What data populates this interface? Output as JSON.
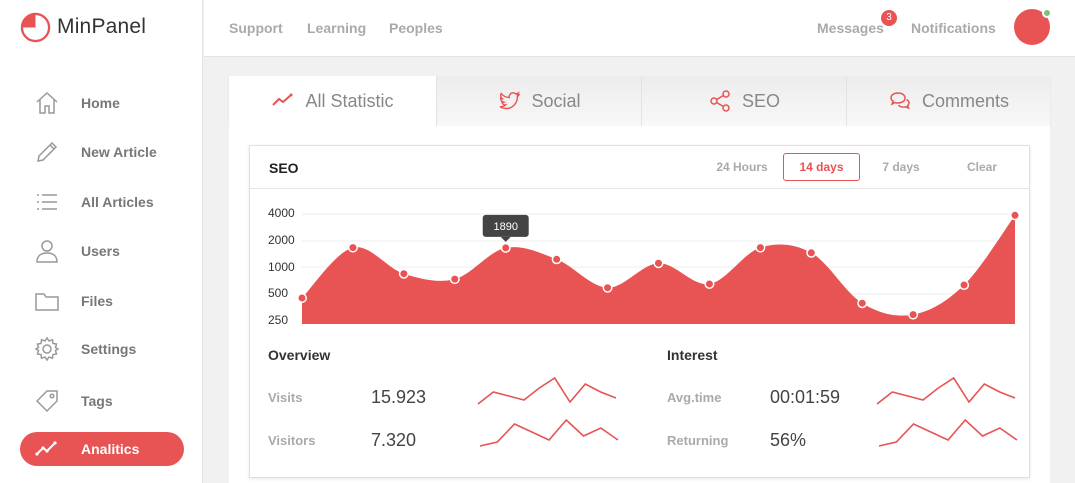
{
  "brand": {
    "name": "MinPanel"
  },
  "sidebar": {
    "items": [
      {
        "label": "Home",
        "icon": "home-icon",
        "active": false
      },
      {
        "label": "New Article",
        "icon": "pencil-icon",
        "active": false
      },
      {
        "label": "All Articles",
        "icon": "list-icon",
        "active": false
      },
      {
        "label": "Users",
        "icon": "user-icon",
        "active": false
      },
      {
        "label": "Files",
        "icon": "folder-icon",
        "active": false
      },
      {
        "label": "Settings",
        "icon": "gear-icon",
        "active": false
      },
      {
        "label": "Tags",
        "icon": "tag-icon",
        "active": false
      },
      {
        "label": "Analitics",
        "icon": "trend-icon",
        "active": true
      }
    ]
  },
  "topbar": {
    "links": [
      "Support",
      "Learning",
      "Peoples"
    ],
    "messages_label": "Messages",
    "messages_count": "3",
    "notifications_label": "Notifications"
  },
  "tabs": [
    {
      "label": "All Statistic",
      "icon": "trend-icon",
      "active": true
    },
    {
      "label": "Social",
      "icon": "twitter-icon",
      "active": false
    },
    {
      "label": "SEO",
      "icon": "share-icon",
      "active": false
    },
    {
      "label": "Comments",
      "icon": "comments-icon",
      "active": false
    }
  ],
  "card": {
    "title": "SEO",
    "ranges": [
      {
        "label": "24 Hours",
        "active": false
      },
      {
        "label": "14 days",
        "active": true
      },
      {
        "label": "7 days",
        "active": false
      },
      {
        "label": "Clear",
        "active": false
      }
    ]
  },
  "chart_data": {
    "type": "area",
    "y_tick_labels": [
      "4000",
      "2000",
      "1000",
      "500",
      "250"
    ],
    "points": [
      500,
      1900,
      950,
      850,
      1890,
      1450,
      690,
      1300,
      760,
      1900,
      1700,
      450,
      340,
      740,
      4200
    ],
    "tooltip": {
      "index": 4,
      "label": "1890"
    },
    "color": "#e85354",
    "grid": true
  },
  "overview": {
    "title": "Overview",
    "rows": [
      {
        "label": "Visits",
        "value": "15.923",
        "spark": [
          2,
          8,
          6,
          4,
          10,
          15,
          3,
          12,
          8,
          5
        ]
      },
      {
        "label": "Visitors",
        "value": "7.320",
        "spark": [
          3,
          5,
          14,
          10,
          6,
          16,
          8,
          12,
          6
        ]
      }
    ]
  },
  "interest": {
    "title": "Interest",
    "rows": [
      {
        "label": "Avg.time",
        "value": "00:01:59",
        "spark": [
          2,
          8,
          6,
          4,
          10,
          15,
          3,
          12,
          8,
          5
        ]
      },
      {
        "label": "Returning",
        "value": "56%",
        "spark": [
          3,
          5,
          14,
          10,
          6,
          16,
          8,
          12,
          6
        ]
      }
    ]
  },
  "colors": {
    "accent": "#e85354",
    "online": "#7cc27a"
  }
}
